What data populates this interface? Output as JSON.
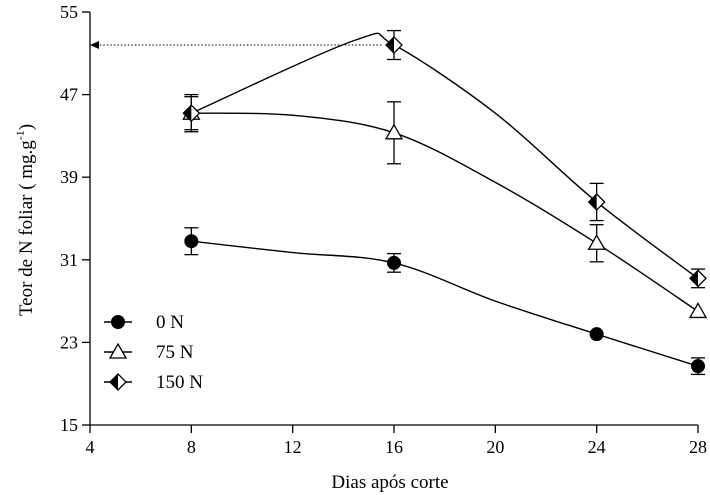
{
  "chart_data": {
    "type": "line",
    "title": "",
    "xlabel": "Dias após corte",
    "ylabel": "Teor de N foliar ( mg.g",
    "ylabel_sup": "-1",
    "ylabel_close": ")",
    "xlim": [
      4,
      28
    ],
    "ylim": [
      15,
      55
    ],
    "xticks": [
      4,
      8,
      12,
      16,
      20,
      24,
      28
    ],
    "yticks": [
      15,
      23,
      31,
      39,
      47,
      55
    ],
    "xtick_labels": [
      "4",
      "8",
      "12",
      "16",
      "20",
      "24",
      "28"
    ],
    "ytick_labels": [
      "15",
      "23",
      "31",
      "39",
      "47",
      "55"
    ],
    "legend_position": "lower-left",
    "series": [
      {
        "name": "0 N",
        "marker": "filled-circle",
        "x": [
          8,
          16,
          24,
          28
        ],
        "y": [
          32.8,
          30.7,
          23.8,
          20.7
        ],
        "err": [
          1.3,
          0.9,
          0,
          0.8
        ],
        "fit_y": [
          32.8,
          31.7,
          30.7,
          27.0,
          23.8,
          20.7
        ]
      },
      {
        "name": "75 N",
        "marker": "open-triangle",
        "x": [
          8,
          16,
          24,
          28
        ],
        "y": [
          45.2,
          43.3,
          32.6,
          26.0
        ],
        "err": [
          1.6,
          3.0,
          1.8,
          0
        ],
        "fit_y": [
          45.2,
          45.0,
          43.3,
          38.5,
          32.6,
          26.0
        ]
      },
      {
        "name": "150 N",
        "marker": "half-filled-diamond",
        "x": [
          8,
          16,
          24,
          28
        ],
        "y": [
          45.2,
          51.8,
          36.6,
          29.2
        ],
        "err": [
          1.8,
          1.4,
          1.8,
          0.9
        ],
        "fit_y": [
          45.2,
          52.3,
          51.8,
          45.2,
          36.6,
          29.2
        ],
        "fit_x": [
          8,
          14.5,
          16,
          20,
          24,
          28
        ]
      }
    ],
    "fit_x": [
      8,
      12,
      16,
      20,
      24,
      28
    ],
    "annotation": {
      "type": "arrow",
      "from": [
        15.5,
        51.8
      ],
      "to": [
        4,
        51.8
      ],
      "style": "dotted"
    }
  }
}
